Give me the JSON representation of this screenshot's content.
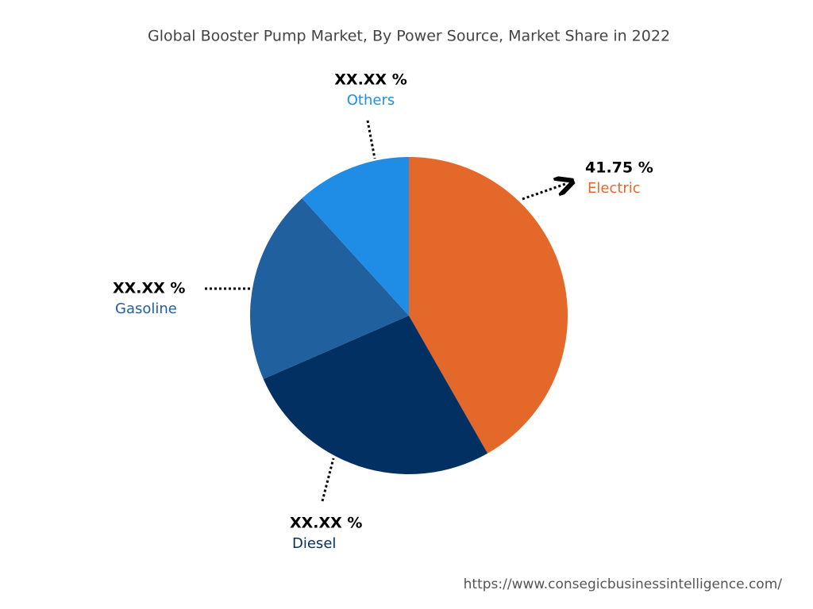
{
  "chart_data": {
    "type": "pie",
    "title": "Global Booster Pump Market, By Power Source, Market Share in 2022",
    "categories": [
      "Electric",
      "Diesel",
      "Gasoline",
      "Others"
    ],
    "values": [
      41.75,
      26.7,
      19.8,
      11.75
    ],
    "value_labels": [
      "41.75 %",
      "XX.XX %",
      "XX.XX %",
      "XX.XX %"
    ],
    "colors": [
      "#e4682a",
      "#023063",
      "#20609f",
      "#1f8de6"
    ],
    "source": "https://www.consegicbusinessintelligence.com/"
  }
}
